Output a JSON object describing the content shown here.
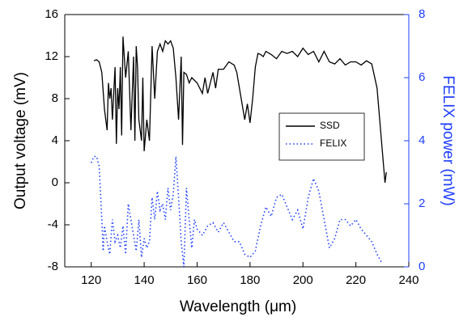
{
  "chart_data": {
    "type": "line",
    "xlabel": "Wavelength (μm)",
    "ylabel": "Output voltage (mV)",
    "y2label": "FELIX power (mW)",
    "xlim": [
      110,
      240
    ],
    "xticks": [
      120,
      140,
      160,
      180,
      200,
      220,
      240
    ],
    "ylim": [
      -8,
      16
    ],
    "yticks": [
      -8,
      -4,
      0,
      4,
      8,
      12,
      16
    ],
    "y2lim": [
      0,
      8
    ],
    "y2ticks": [
      0,
      2,
      4,
      6,
      8
    ],
    "y2color": "#1f3fff",
    "legend": "center right",
    "series": [
      {
        "name": "SSD",
        "color": "#000000",
        "linestyle": "solid",
        "x": [
          121,
          122,
          123,
          124,
          125,
          126,
          126.5,
          127,
          127.5,
          128,
          129,
          129.5,
          130,
          130.5,
          131,
          131.5,
          132,
          133,
          134,
          135,
          136,
          136.5,
          137,
          137.5,
          138,
          139,
          139.5,
          140,
          141,
          142,
          143,
          144,
          145,
          146,
          147,
          148,
          149,
          150,
          151,
          152,
          153,
          154,
          154.5,
          155,
          156,
          157,
          158,
          160,
          162,
          163,
          164,
          165,
          166,
          167,
          168,
          170,
          172,
          174,
          175,
          176,
          177,
          178,
          179,
          180,
          181,
          182,
          183,
          184,
          185,
          186,
          188,
          190,
          192,
          194,
          196,
          198,
          200,
          202,
          204,
          206,
          208,
          210,
          212,
          214,
          216,
          218,
          220,
          222,
          224,
          226,
          228,
          229,
          230,
          231,
          231.5
        ],
        "values": [
          11.6,
          11.7,
          11.5,
          10.5,
          7,
          5,
          9.5,
          8,
          9,
          6,
          11,
          3.7,
          9,
          7,
          11,
          4.5,
          13.9,
          10,
          12.5,
          5,
          12,
          4,
          13,
          11,
          6,
          4,
          10,
          3,
          6,
          4,
          13,
          8,
          12.5,
          13.2,
          12.5,
          13.5,
          13.2,
          13.5,
          12.8,
          10,
          6,
          12,
          3.6,
          10.5,
          10.3,
          9.5,
          10,
          9.5,
          8.5,
          10,
          8.5,
          9.5,
          10.5,
          9,
          10.8,
          10.8,
          11.5,
          11.2,
          10.5,
          9,
          7.5,
          6,
          7.5,
          5.7,
          8,
          11,
          12.3,
          12.2,
          12,
          12.5,
          12.2,
          11.8,
          12.5,
          12.3,
          12.5,
          12,
          12.8,
          12.2,
          12.5,
          11.5,
          12.5,
          11.5,
          11.3,
          11.8,
          11.2,
          11.5,
          11.5,
          11.2,
          11.6,
          11.3,
          9,
          6,
          3,
          0,
          1
        ]
      },
      {
        "name": "FELIX",
        "color": "#1f3fff",
        "linestyle": "dotted",
        "axis": "y2",
        "x": [
          120,
          121,
          122,
          123,
          124,
          124.5,
          125,
          126,
          127,
          128,
          129,
          130,
          131,
          132,
          133,
          134,
          135,
          136,
          137,
          138,
          139,
          140,
          141,
          142,
          143,
          144,
          145,
          146,
          147,
          148,
          149,
          150,
          151,
          152,
          153,
          154,
          155,
          156,
          157,
          158,
          159,
          160,
          162,
          164,
          166,
          168,
          170,
          172,
          174,
          176,
          178,
          180,
          182,
          184,
          186,
          188,
          190,
          192,
          194,
          196,
          198,
          200,
          202,
          204,
          206,
          208,
          210,
          212,
          214,
          216,
          218,
          220,
          222,
          224,
          226,
          228,
          230
        ],
        "values": [
          3.3,
          3.5,
          3.5,
          3.2,
          1.5,
          0.5,
          1.3,
          0.8,
          0.4,
          1.5,
          0.8,
          1.0,
          0.6,
          1.3,
          0.4,
          2.0,
          1.5,
          1.0,
          0.5,
          1.5,
          0.3,
          0.9,
          0.6,
          0.8,
          2.2,
          1.5,
          2.4,
          1.8,
          2.0,
          1.5,
          2.5,
          1.8,
          2.3,
          3.5,
          2.2,
          0.8,
          0.0,
          2.5,
          1.5,
          0.6,
          1.5,
          1.2,
          1.0,
          1.3,
          1.4,
          1.1,
          1.4,
          1.1,
          0.8,
          0.8,
          0.4,
          0.3,
          0.5,
          1.3,
          1.9,
          1.6,
          2.2,
          2.3,
          1.9,
          1.5,
          1.8,
          1.2,
          2.2,
          2.8,
          2.4,
          1.5,
          0.6,
          0.9,
          1.5,
          1.5,
          1.3,
          1.5,
          1.2,
          1.0,
          0.8,
          0.4,
          0.1
        ]
      }
    ]
  }
}
